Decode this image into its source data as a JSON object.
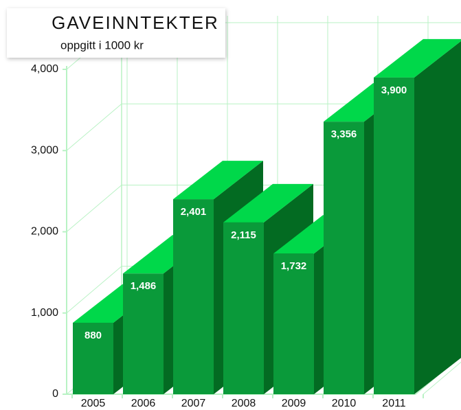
{
  "chart_data": {
    "type": "bar3d",
    "title": "GAVEINNTEKTER",
    "subtitle": "oppgitt i 1000 kr",
    "categories": [
      "2005",
      "2006",
      "2007",
      "2008",
      "2009",
      "2010",
      "2011"
    ],
    "values": [
      880,
      1486,
      2401,
      2115,
      1732,
      3356,
      3900
    ],
    "value_labels": [
      "880",
      "1,486",
      "2,401",
      "2,115",
      "1,732",
      "3,356",
      "3,900"
    ],
    "colors": {
      "front": "#0a9a3a",
      "top": "#00d84a",
      "side": "#036b22"
    },
    "ylim": [
      0,
      4000
    ],
    "yticks": [
      0,
      {
        "value": 1000,
        "label": "1,000"
      },
      {
        "value": 2000,
        "label": "2,000"
      },
      {
        "value": 3000,
        "label": "3,000"
      },
      {
        "value": 4000,
        "label": "4,000"
      }
    ],
    "grid": true
  }
}
